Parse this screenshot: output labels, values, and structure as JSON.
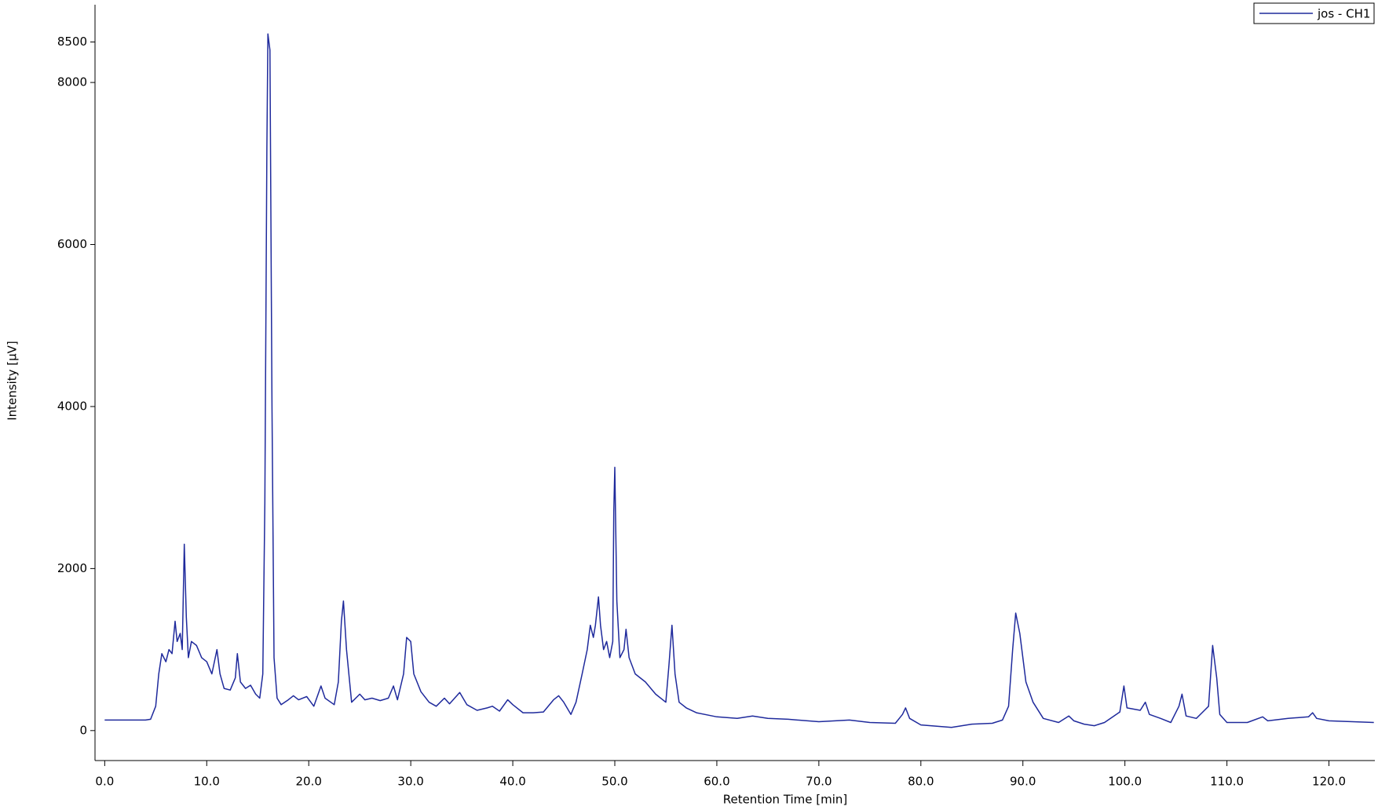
{
  "chart_data": {
    "type": "line",
    "xlabel": "Retention Time [min]",
    "ylabel": "Intensity [µV]",
    "legend": "top-right",
    "x": [
      0,
      4.0,
      4.5,
      5.0,
      5.3,
      5.6,
      6.0,
      6.3,
      6.6,
      6.9,
      7.1,
      7.4,
      7.6,
      7.8,
      8.0,
      8.2,
      8.5,
      9.0,
      9.5,
      10.0,
      10.5,
      11.0,
      11.3,
      11.7,
      12.3,
      12.8,
      13.0,
      13.3,
      13.8,
      14.3,
      14.8,
      15.2,
      15.5,
      15.7,
      15.9,
      16.0,
      16.2,
      16.4,
      16.6,
      16.9,
      17.3,
      18.0,
      18.5,
      19.0,
      19.8,
      20.5,
      21.2,
      21.6,
      22.5,
      22.9,
      23.2,
      23.4,
      23.7,
      24.2,
      25.0,
      25.5,
      26.2,
      27.0,
      27.8,
      28.3,
      28.7,
      29.3,
      29.6,
      30.0,
      30.3,
      31.0,
      31.8,
      32.5,
      33.3,
      33.8,
      34.3,
      34.8,
      35.5,
      36.5,
      37.5,
      38.0,
      38.7,
      39.5,
      40.0,
      41.0,
      42.0,
      43.0,
      44.0,
      44.5,
      45.0,
      45.7,
      46.2,
      46.8,
      47.3,
      47.6,
      47.9,
      48.1,
      48.4,
      48.6,
      48.9,
      49.2,
      49.5,
      49.8,
      49.9,
      50.0,
      50.2,
      50.5,
      50.9,
      51.1,
      51.4,
      52.0,
      53.0,
      54.0,
      55.0,
      55.3,
      55.6,
      55.9,
      56.3,
      57.0,
      58.0,
      60.0,
      62.0,
      63.5,
      65.0,
      67.0,
      70.0,
      73.0,
      75.0,
      77.5,
      78.2,
      78.5,
      78.9,
      80.0,
      83.0,
      85.0,
      87.0,
      88.0,
      88.6,
      89.0,
      89.3,
      89.7,
      90.3,
      91.0,
      92.0,
      93.5,
      94.5,
      95.0,
      96.0,
      97.0,
      98.0,
      99.5,
      99.9,
      100.2,
      101.5,
      102.0,
      102.4,
      103.5,
      104.5,
      105.3,
      105.6,
      106.0,
      107.0,
      107.8,
      108.2,
      108.6,
      109.0,
      109.3,
      110.0,
      112.0,
      113.5,
      114.0,
      116.0,
      118.0,
      118.4,
      118.8,
      120.0,
      124.4
    ],
    "series": [
      {
        "name": "jos - CH1",
        "color": "#1f2a9c",
        "values": [
          130,
          130,
          140,
          300,
          700,
          950,
          850,
          1000,
          950,
          1350,
          1100,
          1200,
          1000,
          2300,
          1400,
          900,
          1100,
          1050,
          900,
          850,
          700,
          1000,
          700,
          520,
          500,
          650,
          950,
          600,
          520,
          560,
          450,
          400,
          700,
          2800,
          7200,
          8600,
          8400,
          4000,
          900,
          400,
          320,
          380,
          430,
          380,
          420,
          300,
          550,
          400,
          320,
          600,
          1350,
          1600,
          1000,
          350,
          450,
          380,
          400,
          370,
          400,
          550,
          380,
          700,
          1150,
          1100,
          700,
          480,
          350,
          300,
          400,
          330,
          400,
          470,
          320,
          250,
          280,
          300,
          240,
          380,
          320,
          220,
          220,
          230,
          380,
          430,
          350,
          200,
          350,
          700,
          1000,
          1300,
          1150,
          1300,
          1650,
          1300,
          1000,
          1100,
          900,
          1100,
          2700,
          3250,
          1600,
          900,
          1000,
          1250,
          900,
          700,
          600,
          450,
          350,
          800,
          1300,
          700,
          350,
          280,
          220,
          170,
          150,
          180,
          150,
          140,
          110,
          130,
          100,
          90,
          200,
          280,
          150,
          70,
          40,
          80,
          90,
          130,
          300,
          1000,
          1450,
          1200,
          600,
          350,
          150,
          100,
          180,
          120,
          80,
          60,
          100,
          230,
          550,
          280,
          250,
          350,
          200,
          150,
          100,
          300,
          450,
          180,
          150,
          250,
          300,
          1050,
          650,
          200,
          100,
          100,
          170,
          120,
          150,
          170,
          220,
          150,
          120,
          100
        ]
      }
    ],
    "xlim": [
      -0.95,
      124.5
    ],
    "ylim": [
      -370,
      8960
    ],
    "xticks": [
      {
        "value": 0,
        "label": "0.0"
      },
      {
        "value": 10,
        "label": "10.0"
      },
      {
        "value": 20,
        "label": "20.0"
      },
      {
        "value": 30,
        "label": "30.0"
      },
      {
        "value": 40,
        "label": "40.0"
      },
      {
        "value": 50,
        "label": "50.0"
      },
      {
        "value": 60,
        "label": "60.0"
      },
      {
        "value": 70,
        "label": "70.0"
      },
      {
        "value": 80,
        "label": "80.0"
      },
      {
        "value": 90,
        "label": "90.0"
      },
      {
        "value": 100,
        "label": "100.0"
      },
      {
        "value": 110,
        "label": "110.0"
      },
      {
        "value": 120,
        "label": "120.0"
      }
    ],
    "yticks": [
      0,
      2000,
      4000,
      6000,
      8000,
      8500
    ]
  }
}
